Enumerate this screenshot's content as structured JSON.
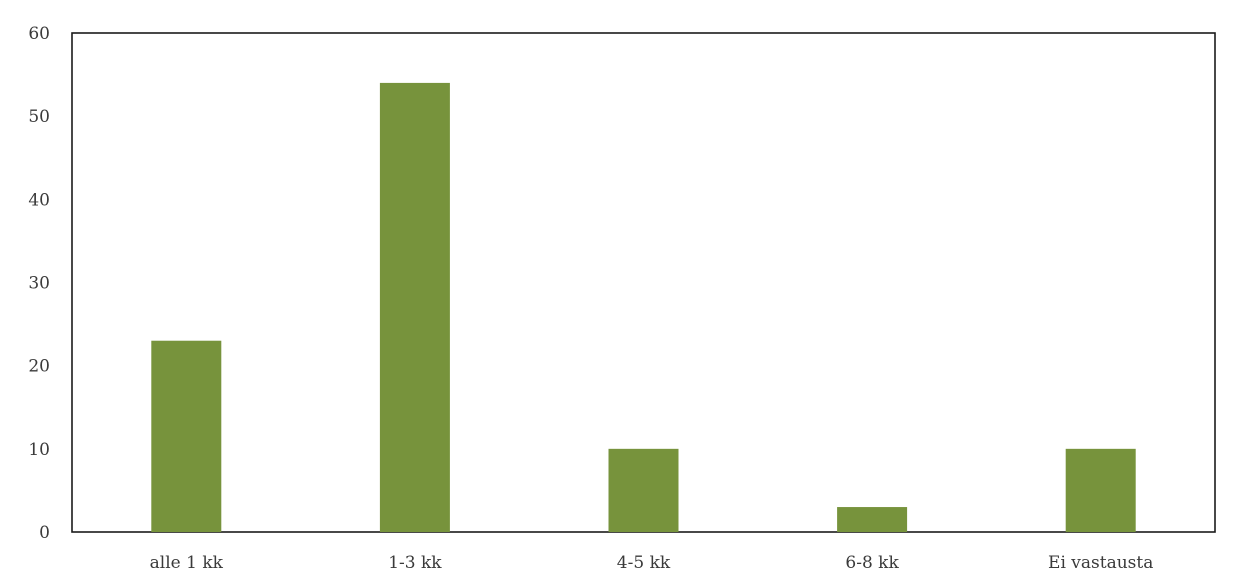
{
  "chart_data": {
    "type": "bar",
    "title": "",
    "xlabel": "",
    "ylabel": "",
    "categories": [
      "alle 1 kk",
      "1-3 kk",
      "4-5 kk",
      "6-8 kk",
      "Ei vastausta"
    ],
    "values": [
      23,
      54,
      10,
      3,
      10
    ],
    "ylim": [
      0,
      60
    ],
    "yticks": [
      0,
      10,
      20,
      30,
      40,
      50,
      60
    ],
    "grid": false,
    "legend": "none",
    "bar_color": "#77933c"
  }
}
